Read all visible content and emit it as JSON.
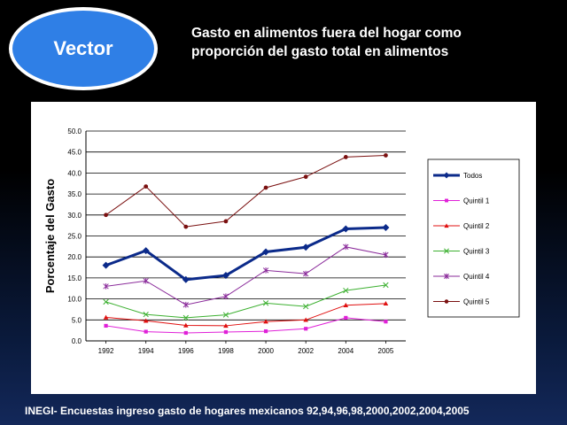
{
  "badge": {
    "label": "Vector"
  },
  "header": {
    "title_line1": "Gasto en alimentos fuera del hogar como",
    "title_line2": "proporción del gasto total en alimentos"
  },
  "footer": {
    "source": "INEGI- Encuestas ingreso gasto de hogares mexicanos 92,94,96,98,2000,2002,2004,2005"
  },
  "colors": {
    "Todos": "#0b2a8a",
    "Quintil 1": "#e020d8",
    "Quintil 2": "#e01010",
    "Quintil 3": "#3cb030",
    "Quintil 4": "#8a2a9a",
    "Quintil 5": "#7a1010"
  },
  "chart_data": {
    "type": "line",
    "title": "",
    "xlabel": "",
    "ylabel": "Porcentaje del Gasto",
    "ylim": [
      0,
      50
    ],
    "yticks": [
      "0.0",
      "5.0",
      "10.0",
      "15.0",
      "20.0",
      "25.0",
      "30.0",
      "35.0",
      "40.0",
      "45.0",
      "50.0"
    ],
    "categories": [
      "1992",
      "1994",
      "1996",
      "1998",
      "2000",
      "2002",
      "2004",
      "2005"
    ],
    "grid": true,
    "legend": "right",
    "series": [
      {
        "name": "Todos",
        "values": [
          18.0,
          21.5,
          14.6,
          15.6,
          21.2,
          22.3,
          26.7,
          27.0
        ],
        "marker": "diamond"
      },
      {
        "name": "Quintil 1",
        "values": [
          3.6,
          2.2,
          1.9,
          2.1,
          2.3,
          2.9,
          5.5,
          4.6
        ],
        "marker": "square"
      },
      {
        "name": "Quintil 2",
        "values": [
          5.6,
          4.8,
          3.7,
          3.6,
          4.6,
          5.0,
          8.5,
          8.9
        ],
        "marker": "triangle"
      },
      {
        "name": "Quintil 3",
        "values": [
          9.3,
          6.3,
          5.5,
          6.2,
          9.0,
          8.2,
          12.0,
          13.3
        ],
        "marker": "x"
      },
      {
        "name": "Quintil 4",
        "values": [
          13.0,
          14.3,
          8.6,
          10.6,
          16.8,
          16.0,
          22.4,
          20.5
        ],
        "marker": "star"
      },
      {
        "name": "Quintil 5",
        "values": [
          30.0,
          36.8,
          27.2,
          28.5,
          36.5,
          39.1,
          43.8,
          44.2
        ],
        "marker": "circle"
      }
    ]
  }
}
